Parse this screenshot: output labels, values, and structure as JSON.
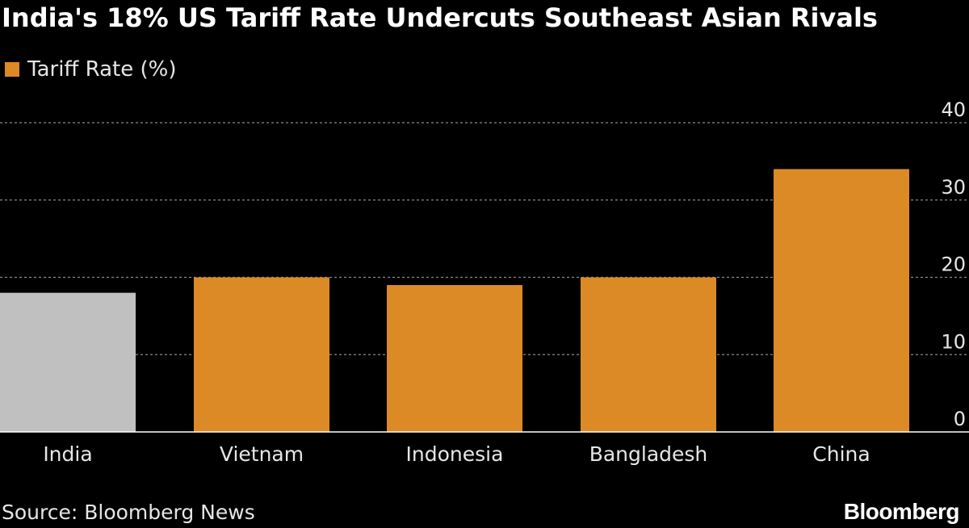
{
  "title": "India's 18% US Tariff Rate Undercuts Southeast Asian Rivals",
  "legend": {
    "label": "Tariff Rate (%)"
  },
  "source": "Source: Bloomberg News",
  "brand": "Bloomberg",
  "colors": {
    "background": "#000000",
    "highlight_bar": "#c0c0c0",
    "bar": "#dc8a26",
    "grid": "#8a8a8a",
    "axis": "#ffffff",
    "tick_text": "#e6e6e6"
  },
  "chart_data": {
    "type": "bar",
    "title": "India's 18% US Tariff Rate Undercuts Southeast Asian Rivals",
    "categories": [
      "India",
      "Vietnam",
      "Indonesia",
      "Bangladesh",
      "China"
    ],
    "series": [
      {
        "name": "Tariff Rate (%)",
        "values": [
          18,
          20,
          19,
          20,
          34
        ]
      }
    ],
    "highlight_category": "India",
    "xlabel": "",
    "ylabel": "",
    "ylim": [
      0,
      40
    ],
    "yticks": [
      0,
      10,
      20,
      30,
      40
    ],
    "grid": true,
    "legend_position": "top-left"
  }
}
